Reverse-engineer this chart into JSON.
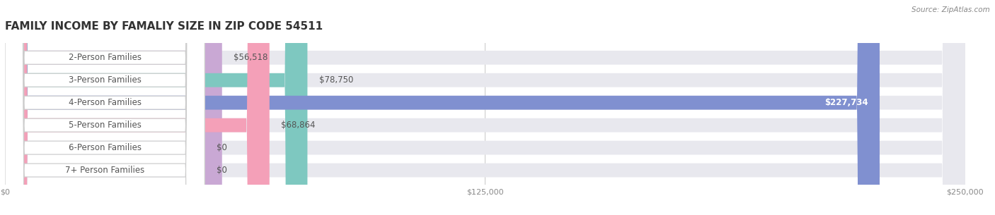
{
  "title": "FAMILY INCOME BY FAMALIY SIZE IN ZIP CODE 54511",
  "source": "Source: ZipAtlas.com",
  "categories": [
    "2-Person Families",
    "3-Person Families",
    "4-Person Families",
    "5-Person Families",
    "6-Person Families",
    "7+ Person Families"
  ],
  "values": [
    56518,
    78750,
    227734,
    68864,
    0,
    0
  ],
  "bar_colors": [
    "#c9a8d4",
    "#7ec8c0",
    "#8090d0",
    "#f4a0b8",
    "#f8d0a0",
    "#f8b8b0"
  ],
  "value_labels": [
    "$56,518",
    "$78,750",
    "$227,734",
    "$68,864",
    "$0",
    "$0"
  ],
  "xlim": [
    0,
    250000
  ],
  "xticks": [
    0,
    125000,
    250000
  ],
  "xtick_labels": [
    "$0",
    "$125,000",
    "$250,000"
  ],
  "background_color": "#ffffff",
  "title_fontsize": 11,
  "label_fontsize": 8.5,
  "value_fontsize": 8.5,
  "bar_height": 0.62
}
